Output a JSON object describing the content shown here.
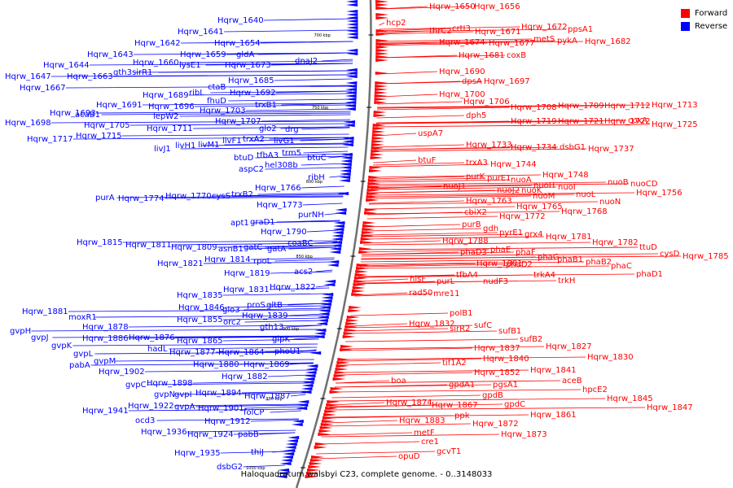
{
  "legend": {
    "forward": {
      "label": "Forward",
      "color": "#ff0000"
    },
    "reverse": {
      "label": "Reverse",
      "color": "#0000ff"
    }
  },
  "caption": "Haloquadratum walsbyi C23, complete genome. - 0..3148033",
  "ticks": [
    "700 kbp",
    "750 kbp",
    "800 kbp",
    "850 kbp",
    "900 kbp",
    "950 kbp",
    "1000 kbp"
  ],
  "reverse_labels": [
    [
      "Hqrw_1640",
      267,
      24
    ],
    [
      "Hqrw_1641",
      218,
      38
    ],
    [
      "Hqrw_1642",
      165,
      52
    ],
    [
      "Hqrw_1654",
      263,
      52
    ],
    [
      "Hqrw_1643",
      107,
      66
    ],
    [
      "Hqrw_1659",
      221,
      66
    ],
    [
      "gldA",
      290,
      66
    ],
    [
      "Hqrw_1644",
      53,
      79
    ],
    [
      "Hqrw_1660",
      163,
      76
    ],
    [
      "lysE1",
      220,
      79
    ],
    [
      "Hqrw_1673",
      276,
      79
    ],
    [
      "dnaJ2",
      362,
      74
    ],
    [
      "Hqrw_1647",
      6,
      93
    ],
    [
      "Hqrw_1663",
      82,
      93
    ],
    [
      "gth3",
      139,
      88
    ],
    [
      "sirR1",
      162,
      88
    ],
    [
      "Hqrw_1667",
      24,
      107
    ],
    [
      "Hqrw_1685",
      280,
      98
    ],
    [
      "ctaB",
      255,
      106
    ],
    [
      "ribL",
      232,
      113
    ],
    [
      "Hqrw_1689",
      175,
      116
    ],
    [
      "Hqrw_1692",
      282,
      113
    ],
    [
      "fhuD",
      254,
      123
    ],
    [
      "Hqrw_1691",
      118,
      128
    ],
    [
      "Hqrw_1696",
      182,
      130
    ],
    [
      "trxB1",
      313,
      128
    ],
    [
      "acaB1",
      92,
      140
    ],
    [
      "Hqrw_1703",
      245,
      135
    ],
    [
      "Hqrw_1693",
      61,
      138
    ],
    [
      "lepW2",
      188,
      142
    ],
    [
      "Hqrw_1707",
      264,
      148
    ],
    [
      "Hqrw_1698",
      6,
      150
    ],
    [
      "Hqrw_1705",
      103,
      153
    ],
    [
      "glo2",
      318,
      157
    ],
    [
      "drg",
      350,
      158
    ],
    [
      "Hqrw_1711",
      180,
      157
    ],
    [
      "Hqrw_1717",
      33,
      170
    ],
    [
      "Hqrw_1715",
      93,
      166
    ],
    [
      "livF1",
      273,
      172
    ],
    [
      "trxA2",
      298,
      170
    ],
    [
      "livG1",
      336,
      172
    ],
    [
      "livJ1",
      189,
      182
    ],
    [
      "livH1",
      215,
      178
    ],
    [
      "livM1",
      243,
      177
    ],
    [
      "trm5",
      346,
      187
    ],
    [
      "tfbA3",
      315,
      190
    ],
    [
      "btuD",
      287,
      193
    ],
    [
      "btuC",
      377,
      193
    ],
    [
      "hel308b",
      325,
      202
    ],
    [
      "aspC2",
      293,
      207
    ],
    [
      "ribH",
      378,
      217
    ],
    [
      "Hqrw_1766",
      313,
      230
    ],
    [
      "purA",
      117,
      242
    ],
    [
      "Hqrw_1774",
      145,
      243
    ],
    [
      "Hqrw_1770",
      203,
      240
    ],
    [
      "cysS",
      260,
      240
    ],
    [
      "trxB2",
      284,
      238
    ],
    [
      "Hqrw_1773",
      315,
      251
    ],
    [
      "purNH",
      366,
      263
    ],
    [
      "apt1",
      283,
      273
    ],
    [
      "graD1",
      307,
      272
    ],
    [
      "Hqrw_1790",
      320,
      284
    ],
    [
      "Hqrw_1815",
      94,
      297
    ],
    [
      "Hqrw_1811",
      154,
      300
    ],
    [
      "Hqrw_1809",
      210,
      303
    ],
    [
      "asnB1",
      268,
      305
    ],
    [
      "gatC",
      299,
      303
    ],
    [
      "gatA",
      328,
      305
    ],
    [
      "coaBC",
      353,
      298
    ],
    [
      "Hqrw_1814",
      251,
      318
    ],
    [
      "rpoL",
      311,
      320
    ],
    [
      "Hqrw_1821",
      193,
      323
    ],
    [
      "acs2",
      361,
      333
    ],
    [
      "Hqrw_1819",
      275,
      335
    ],
    [
      "Hqrw_1831",
      274,
      355
    ],
    [
      "Hqrw_1822",
      331,
      352
    ],
    [
      "Hqrw_1835",
      217,
      362
    ],
    [
      "proS",
      303,
      374
    ],
    [
      "gltB",
      327,
      374
    ],
    [
      "Hqrw_1846",
      219,
      377
    ],
    [
      "glo3",
      273,
      380
    ],
    [
      "Hqrw_1839",
      297,
      387
    ],
    [
      "Hqrw_1881",
      27,
      382
    ],
    [
      "moxR1",
      84,
      389
    ],
    [
      "Hqrw_1855",
      217,
      392
    ],
    [
      "orc2",
      274,
      395
    ],
    [
      "gth13",
      319,
      401
    ],
    [
      "Hqrw_1878",
      101,
      401
    ],
    [
      "gvpH",
      12,
      406
    ],
    [
      "Hqrw_1886",
      101,
      415
    ],
    [
      "Hqrw_1876",
      158,
      414
    ],
    [
      "glpK",
      334,
      416
    ],
    [
      "gvpJ",
      38,
      414
    ],
    [
      "Hqrw_1865",
      217,
      418
    ],
    [
      "phoU1",
      337,
      431
    ],
    [
      "gvpK",
      63,
      424
    ],
    [
      "hadL",
      181,
      428
    ],
    [
      "Hqrw_1877",
      208,
      432
    ],
    [
      "Hqrw_1864",
      268,
      432
    ],
    [
      "gvpL",
      90,
      434
    ],
    [
      "gvpM",
      115,
      443
    ],
    [
      "Hqrw_1880",
      237,
      447
    ],
    [
      "Hqrw_1869",
      299,
      447
    ],
    [
      "pabA",
      85,
      448
    ],
    [
      "Hqrw_1902",
      121,
      456
    ],
    [
      "Hqrw_1882",
      272,
      462
    ],
    [
      "gvpC",
      154,
      472
    ],
    [
      "Hqrw_1898",
      180,
      470
    ],
    [
      "gvpN",
      189,
      484
    ],
    [
      "gvpI",
      214,
      484
    ],
    [
      "Hqrw_1894",
      240,
      482
    ],
    [
      "Hqrw_1887",
      300,
      486
    ],
    [
      "Hqrw_1941",
      101,
      504
    ],
    [
      "Hqrw_1922",
      157,
      498
    ],
    [
      "gvpA",
      214,
      499
    ],
    [
      "Hqrw_1901",
      243,
      501
    ],
    [
      "folCP",
      299,
      506
    ],
    [
      "ocd3",
      166,
      516
    ],
    [
      "Hqrw_1912",
      251,
      517
    ],
    [
      "Hqrw_1936",
      173,
      530
    ],
    [
      "Hqrw_1924",
      230,
      533
    ],
    [
      "pabB",
      292,
      533
    ],
    [
      "thiJ",
      308,
      555
    ],
    [
      "Hqrw_1935",
      214,
      556
    ],
    [
      "dsbG2",
      266,
      573
    ]
  ],
  "forward_labels": [
    [
      "Hqrw_1650",
      527,
      7
    ],
    [
      "Hqrw_1656",
      582,
      7
    ],
    [
      "hcp2",
      474,
      27
    ],
    [
      "thrC2",
      527,
      37
    ],
    [
      "crtI3",
      555,
      34
    ],
    [
      "Hqrw_1671",
      583,
      38
    ],
    [
      "Hqrw_1672",
      640,
      32
    ],
    [
      "ppsA1",
      697,
      35
    ],
    [
      "Hqrw_1674",
      539,
      51
    ],
    [
      "Hqrw_1677",
      600,
      52
    ],
    [
      "metS",
      655,
      47
    ],
    [
      "pykA",
      684,
      49
    ],
    [
      "Hqrw_1682",
      718,
      50
    ],
    [
      "Hqrw_1681",
      563,
      67
    ],
    [
      "coxB",
      622,
      67
    ],
    [
      "Hqrw_1690",
      539,
      87
    ],
    [
      "dpsA",
      567,
      99
    ],
    [
      "Hqrw_1697",
      594,
      99
    ],
    [
      "Hqrw_1700",
      539,
      115
    ],
    [
      "Hqrw_1706",
      569,
      124
    ],
    [
      "Hqrw_1708",
      627,
      131
    ],
    [
      "Hqrw_1709",
      685,
      129
    ],
    [
      "Hqrw_1712",
      742,
      129
    ],
    [
      "Hqrw_1713",
      800,
      128
    ],
    [
      "dph5",
      572,
      141
    ],
    [
      "Hqrw_1719",
      627,
      148
    ],
    [
      "Hqrw_1721",
      685,
      148
    ],
    [
      "Hqrw_1722",
      742,
      148
    ],
    [
      "coxA",
      771,
      147
    ],
    [
      "Hqrw_1725",
      800,
      152
    ],
    [
      "uspA7",
      513,
      163
    ],
    [
      "Hqrw_1733",
      572,
      177
    ],
    [
      "Hqrw_1734",
      627,
      180
    ],
    [
      "dsbG1",
      687,
      180
    ],
    [
      "Hqrw_1737",
      722,
      182
    ],
    [
      "btuF",
      513,
      196
    ],
    [
      "trxA3",
      572,
      199
    ],
    [
      "Hqrw_1744",
      602,
      201
    ],
    [
      "purK",
      572,
      216
    ],
    [
      "purE1",
      598,
      218
    ],
    [
      "nuoA",
      627,
      220
    ],
    [
      "Hqrw_1748",
      666,
      214
    ],
    [
      "nuoB",
      746,
      223
    ],
    [
      "nuoCD",
      774,
      225
    ],
    [
      "nuoJ1",
      544,
      228
    ],
    [
      "nuoJ2",
      610,
      233
    ],
    [
      "nuoK",
      640,
      233
    ],
    [
      "nuoH",
      655,
      227
    ],
    [
      "nuoI",
      685,
      229
    ],
    [
      "Hqrw_1756",
      781,
      236
    ],
    [
      "nuoM",
      654,
      240
    ],
    [
      "nuoL",
      707,
      238
    ],
    [
      "Hqrw_1763",
      572,
      246
    ],
    [
      "nuoN",
      736,
      247
    ],
    [
      "Hqrw_1765",
      634,
      253
    ],
    [
      "cbiX2",
      570,
      260
    ],
    [
      "Hqrw_1772",
      613,
      265
    ],
    [
      "Hqrw_1768",
      689,
      259
    ],
    [
      "purB",
      567,
      275
    ],
    [
      "gdh",
      593,
      280
    ],
    [
      "pyrE1",
      613,
      285
    ],
    [
      "grx4",
      644,
      287
    ],
    [
      "Hqrw_1781",
      670,
      290
    ],
    [
      "Hqrw_1788",
      543,
      295
    ],
    [
      "Hqrw_1782",
      727,
      297
    ],
    [
      "ttuD",
      785,
      303
    ],
    [
      "cysD",
      810,
      311
    ],
    [
      "Hqrw_1785",
      838,
      314
    ],
    [
      "phaE",
      602,
      306
    ],
    [
      "phaD3",
      565,
      309
    ],
    [
      "phaF",
      633,
      309
    ],
    [
      "phaG",
      660,
      315
    ],
    [
      "phaB1",
      684,
      318
    ],
    [
      "phaB2",
      719,
      321
    ],
    [
      "phaC",
      750,
      326
    ],
    [
      "Hqrw_1801",
      585,
      323
    ],
    [
      "phaD2",
      621,
      324
    ],
    [
      "phaD1",
      781,
      336
    ],
    [
      "tfbA4",
      560,
      337
    ],
    [
      "trkA4",
      655,
      337
    ],
    [
      "hisF",
      503,
      342
    ],
    [
      "purL",
      536,
      345
    ],
    [
      "nudF3",
      593,
      345
    ],
    [
      "trkH",
      685,
      344
    ],
    [
      "rad50",
      502,
      359
    ],
    [
      "mre11",
      532,
      360
    ],
    [
      "polB1",
      552,
      384
    ],
    [
      "Hqrw_1832",
      502,
      397
    ],
    [
      "sirR2",
      552,
      403
    ],
    [
      "sufC",
      582,
      399
    ],
    [
      "sufB1",
      612,
      406
    ],
    [
      "sufB2",
      638,
      416
    ],
    [
      "Hqrw_1837",
      582,
      427
    ],
    [
      "Hqrw_1827",
      670,
      425
    ],
    [
      "tif1A2",
      543,
      445
    ],
    [
      "Hqrw_1840",
      593,
      440
    ],
    [
      "Hqrw_1830",
      721,
      438
    ],
    [
      "Hqrw_1852",
      582,
      457
    ],
    [
      "Hqrw_1841",
      651,
      454
    ],
    [
      "boa",
      480,
      467
    ],
    [
      "gpdA1",
      551,
      472
    ],
    [
      "pgsA1",
      605,
      472
    ],
    [
      "aceB",
      690,
      467
    ],
    [
      "hpcE2",
      715,
      478
    ],
    [
      "gpdB",
      592,
      485
    ],
    [
      "Hqrw_1845",
      745,
      489
    ],
    [
      "Hqrw_1874",
      474,
      494
    ],
    [
      "Hqrw_1867",
      530,
      497
    ],
    [
      "gpdC",
      619,
      496
    ],
    [
      "Hqrw_1847",
      794,
      500
    ],
    [
      "Hqrw_1861",
      651,
      509
    ],
    [
      "ppk",
      558,
      510
    ],
    [
      "Hqrw_1883",
      490,
      516
    ],
    [
      "Hqrw_1872",
      580,
      520
    ],
    [
      "metF",
      508,
      531
    ],
    [
      "Hqrw_1873",
      615,
      533
    ],
    [
      "cre1",
      517,
      542
    ],
    [
      "gcvT1",
      536,
      554
    ],
    [
      "opuD",
      489,
      560
    ]
  ]
}
